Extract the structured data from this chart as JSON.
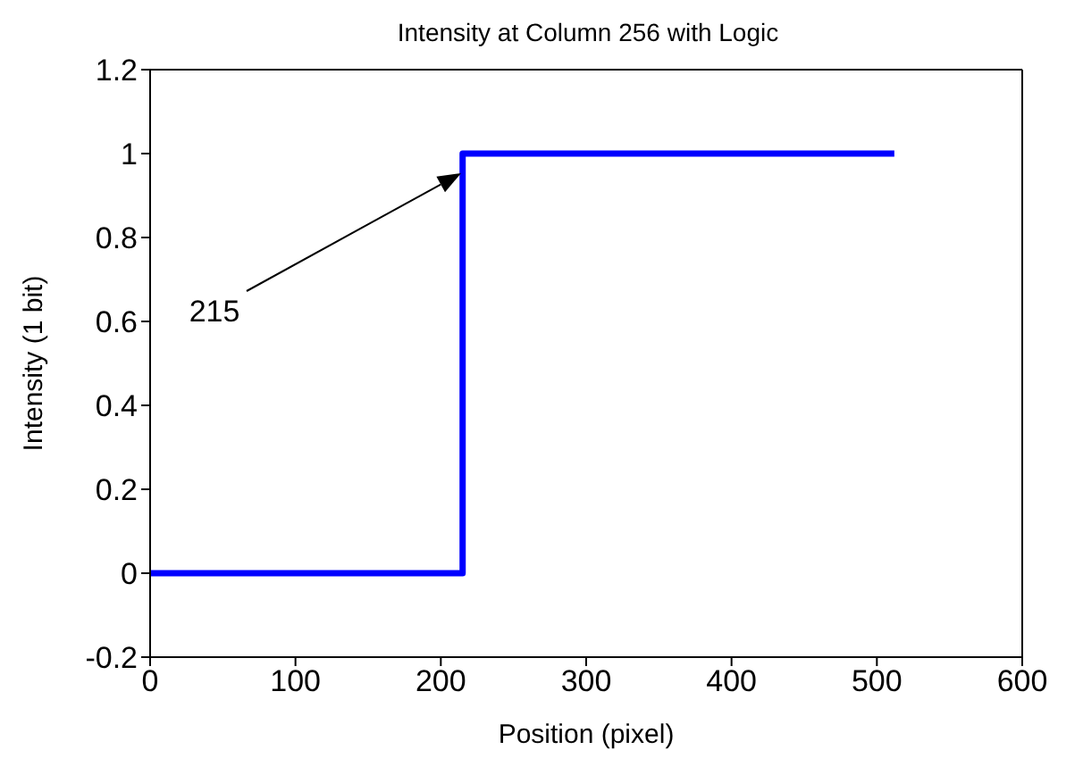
{
  "chart_data": {
    "type": "line",
    "title": "Intensity at Column 256 with Logic",
    "xlabel": "Position (pixel)",
    "ylabel": "Intensity (1 bit)",
    "x": [
      0,
      215,
      215,
      512
    ],
    "series": [
      {
        "color": "#0000ff",
        "values": [
          0,
          0,
          1,
          1
        ]
      }
    ],
    "xlim": [
      0,
      600
    ],
    "xticks": [
      0,
      100,
      200,
      300,
      400,
      500,
      600
    ],
    "ylim": [
      -0.2,
      1.2
    ],
    "yticks": [
      -0.2,
      0,
      0.2,
      0.4,
      0.6,
      0.8,
      1,
      1.2
    ],
    "annotations": [
      "215"
    ],
    "grid": false,
    "legend": false,
    "marker": "none",
    "line_style": "solid"
  }
}
